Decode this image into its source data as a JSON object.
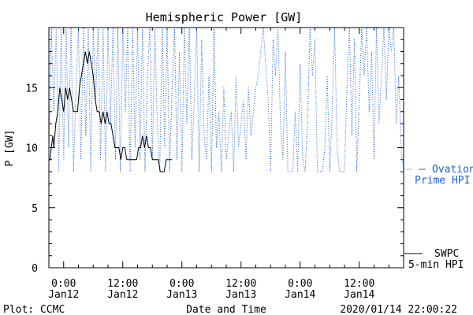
{
  "chart_data": {
    "type": "line",
    "title": "Hemispheric Power [GW]",
    "xlabel": "Date and Time",
    "ylabel": "P [GW]",
    "ylim": [
      0,
      20
    ],
    "xlim_hours": [
      -3,
      69
    ],
    "y_ticks": [
      0,
      5,
      10,
      15
    ],
    "x_ticks": [
      {
        "h": 0,
        "time": "0:00",
        "date": "Jan12"
      },
      {
        "h": 12,
        "time": "12:00",
        "date": "Jan12"
      },
      {
        "h": 24,
        "time": "0:00",
        "date": "Jan13"
      },
      {
        "h": 36,
        "time": "12:00",
        "date": "Jan13"
      },
      {
        "h": 48,
        "time": "0:00",
        "date": "Jan14"
      },
      {
        "h": 60,
        "time": "12:00",
        "date": "Jan14"
      }
    ],
    "series": [
      {
        "name": "SWPC 5-min HPI",
        "legend_line1": "SWPC",
        "legend_line2": "5-min HPI",
        "color": "#000000",
        "style": "solid",
        "x": [
          -3,
          -2.8,
          -2.5,
          -2.2,
          -2,
          -1.6,
          -1.2,
          -0.8,
          -0.4,
          0,
          0.4,
          0.8,
          1.2,
          1.6,
          2,
          2.4,
          2.8,
          3.2,
          3.6,
          4,
          4.4,
          4.8,
          5.2,
          5.6,
          6,
          6.4,
          6.8,
          7.2,
          7.6,
          8,
          8.4,
          8.8,
          9.2,
          9.6,
          10,
          10.4,
          10.8,
          11.2,
          11.6,
          12,
          12.4,
          12.8,
          13.2,
          13.6,
          14,
          14.4,
          14.8,
          15.2,
          15.6,
          16,
          16.4,
          16.8,
          17.2,
          17.6,
          18,
          18.4,
          18.8,
          19.2,
          19.6,
          20,
          20.4,
          20.8,
          21.2,
          21.6,
          22
        ],
        "y": [
          9,
          9,
          10,
          11,
          10,
          12,
          13,
          15,
          14,
          13,
          15,
          14,
          15,
          14,
          13,
          13,
          13,
          15,
          16,
          17,
          18,
          17,
          18,
          17,
          16,
          14,
          13,
          13,
          12,
          13,
          12,
          13,
          12,
          12,
          11,
          10,
          10,
          10,
          9,
          10,
          10,
          9,
          9,
          9,
          9,
          9,
          9,
          10,
          10,
          11,
          10,
          11,
          10,
          10,
          9,
          9,
          9,
          9,
          8,
          8,
          8,
          9,
          9,
          9,
          9
        ]
      },
      {
        "name": "Ovation Prime HPI",
        "legend_line1": "Ovation",
        "legend_line2": "Prime HPI",
        "color": "#1f5fd0",
        "style": "dotted",
        "x": [
          -3,
          -2.5,
          -2,
          -1.5,
          -1,
          -0.5,
          0,
          0.5,
          1,
          1.5,
          2,
          2.5,
          3,
          3.5,
          4,
          4.5,
          5,
          5.5,
          6,
          6.5,
          7,
          7.5,
          8,
          8.5,
          9,
          9.5,
          10,
          10.5,
          11,
          11.5,
          12,
          12.5,
          13,
          13.5,
          14,
          14.5,
          15,
          15.5,
          16,
          16.5,
          17,
          17.5,
          18,
          18.5,
          19,
          19.5,
          20,
          20.5,
          21,
          21.5,
          22,
          22.5,
          23,
          23.5,
          24,
          24.5,
          25,
          25.5,
          26,
          26.5,
          27,
          27.5,
          28,
          28.5,
          29,
          29.5,
          30,
          30.5,
          31,
          31.5,
          32,
          32.5,
          33,
          33.5,
          34,
          34.5,
          35,
          35.5,
          36,
          36.5,
          37,
          37.5,
          38,
          38.5,
          39,
          39.5,
          40,
          40.5,
          41,
          41.5,
          42,
          42.5,
          43,
          43.5,
          44,
          44.5,
          45,
          45.5,
          46,
          46.5,
          47,
          47.5,
          48,
          48.5,
          49,
          49.5,
          50,
          50.5,
          51,
          51.5,
          52,
          52.5,
          53,
          53.5,
          54,
          54.5,
          55,
          55.5,
          56,
          56.5,
          57,
          57.5,
          58,
          58.5,
          59,
          59.5,
          60,
          60.5,
          61,
          61.5,
          62,
          62.5,
          63,
          63.5,
          64,
          64.5,
          65,
          65.5,
          66,
          66.5,
          67,
          67.5,
          68,
          68.5,
          69
        ],
        "y": [
          9,
          20,
          13,
          20,
          8,
          20,
          9,
          20,
          10,
          20,
          8,
          15,
          20,
          9,
          20,
          11,
          20,
          8,
          20,
          14,
          20,
          9,
          20,
          8,
          20,
          12,
          20,
          9,
          20,
          8,
          20,
          13,
          20,
          8,
          20,
          10,
          20,
          9,
          20,
          8,
          16,
          20,
          9,
          20,
          12,
          8,
          20,
          10,
          20,
          8,
          15,
          20,
          9,
          18,
          8,
          20,
          12,
          20,
          9,
          14,
          20,
          8,
          19,
          11,
          9,
          16,
          8,
          20,
          10,
          13,
          8,
          15,
          9,
          11,
          13,
          8,
          16,
          10,
          12,
          14,
          9,
          15,
          11,
          13,
          15,
          16,
          18,
          20,
          17,
          14,
          8,
          19,
          16,
          20,
          12,
          9,
          18,
          8,
          8,
          8,
          13,
          8,
          17,
          9,
          8,
          12,
          20,
          16,
          19,
          8,
          8,
          8,
          10,
          16,
          8,
          13,
          20,
          10,
          8,
          8,
          8,
          15,
          20,
          11,
          19,
          8,
          14,
          20,
          16,
          20,
          13,
          18,
          9,
          20,
          12,
          16,
          20,
          14,
          20,
          18,
          20,
          12,
          16,
          10,
          8
        ]
      }
    ]
  },
  "footer": {
    "left": "Plot: CCMC",
    "center": "Date and Time",
    "right": "2020/01/14 22:00:22"
  }
}
